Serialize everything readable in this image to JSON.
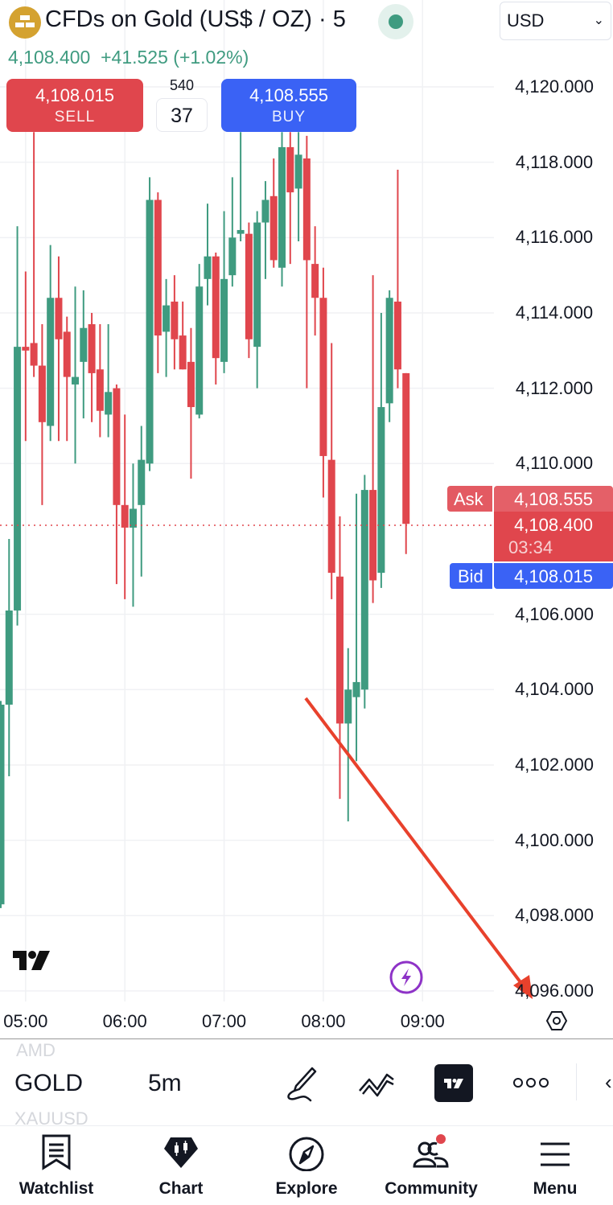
{
  "header": {
    "title": "CFDs on Gold (US$ / OZ) · 5",
    "market_status": "open",
    "last_price": "4,108.400",
    "change": "+41.525 (+1.02%)",
    "currency": "USD"
  },
  "trade": {
    "sell_price": "4,108.015",
    "sell_label": "SELL",
    "buy_price": "4,108.555",
    "buy_label": "BUY",
    "spread_top": "540",
    "spread": "37"
  },
  "price_axis": {
    "ticks": [
      "4,120.000",
      "4,118.000",
      "4,116.000",
      "4,114.000",
      "4,112.000",
      "4,110.000",
      "4,106.000",
      "4,104.000",
      "4,102.000",
      "4,100.000",
      "4,098.000",
      "4,096.000"
    ],
    "ask_label": "Ask",
    "ask_price": "4,108.555",
    "last_price": "4,108.400",
    "countdown": "03:34",
    "bid_label": "Bid",
    "bid_price": "4,108.015"
  },
  "time_axis": {
    "ticks": [
      "05:00",
      "06:00",
      "07:00",
      "08:00",
      "09:00"
    ]
  },
  "colors": {
    "up": "#3f9b80",
    "down": "#e0464d",
    "buy": "#3a62f5",
    "annotation": "#e8412c",
    "gold": "#d4a230"
  },
  "chart_data": {
    "type": "candlestick",
    "interval": "5m",
    "y_range": [
      4096,
      4120
    ],
    "x_range": [
      "04:45",
      "09:00"
    ],
    "grid": true,
    "last_price": 4108.4,
    "candles": [
      {
        "t": "04:45",
        "o": 4098.3,
        "h": 4103.7,
        "l": 4098.2,
        "c": 4103.6
      },
      {
        "t": "04:50",
        "o": 4103.6,
        "h": 4108.0,
        "l": 4101.7,
        "c": 4106.1
      },
      {
        "t": "04:55",
        "o": 4106.1,
        "h": 4116.3,
        "l": 4105.7,
        "c": 4113.1
      },
      {
        "t": "05:00",
        "o": 4113.1,
        "h": 4115.1,
        "l": 4110.6,
        "c": 4113.0
      },
      {
        "t": "05:05",
        "o": 4113.2,
        "h": 4118.8,
        "l": 4112.3,
        "c": 4112.6
      },
      {
        "t": "05:10",
        "o": 4112.6,
        "h": 4113.7,
        "l": 4108.9,
        "c": 4111.1
      },
      {
        "t": "05:15",
        "o": 4111.0,
        "h": 4115.8,
        "l": 4110.6,
        "c": 4114.4
      },
      {
        "t": "05:20",
        "o": 4114.4,
        "h": 4115.5,
        "l": 4110.6,
        "c": 4113.3
      },
      {
        "t": "05:25",
        "o": 4113.5,
        "h": 4113.9,
        "l": 4110.6,
        "c": 4112.3
      },
      {
        "t": "05:30",
        "o": 4112.1,
        "h": 4114.7,
        "l": 4110.0,
        "c": 4112.3
      },
      {
        "t": "05:35",
        "o": 4112.7,
        "h": 4114.6,
        "l": 4111.2,
        "c": 4113.6
      },
      {
        "t": "05:40",
        "o": 4113.7,
        "h": 4114.0,
        "l": 4111.1,
        "c": 4112.4
      },
      {
        "t": "05:45",
        "o": 4112.5,
        "h": 4113.7,
        "l": 4110.7,
        "c": 4111.4
      },
      {
        "t": "05:50",
        "o": 4111.3,
        "h": 4113.7,
        "l": 4110.7,
        "c": 4111.9
      },
      {
        "t": "05:55",
        "o": 4112.0,
        "h": 4112.1,
        "l": 4106.8,
        "c": 4108.9
      },
      {
        "t": "06:00",
        "o": 4108.9,
        "h": 4111.3,
        "l": 4106.4,
        "c": 4108.3
      },
      {
        "t": "06:05",
        "o": 4108.3,
        "h": 4110.0,
        "l": 4106.2,
        "c": 4108.8
      },
      {
        "t": "06:10",
        "o": 4108.9,
        "h": 4111.0,
        "l": 4107.0,
        "c": 4110.1
      },
      {
        "t": "06:15",
        "o": 4110.0,
        "h": 4117.6,
        "l": 4109.8,
        "c": 4117.0
      },
      {
        "t": "06:20",
        "o": 4117.0,
        "h": 4117.2,
        "l": 4112.4,
        "c": 4113.4
      },
      {
        "t": "06:25",
        "o": 4113.5,
        "h": 4114.9,
        "l": 4112.3,
        "c": 4114.2
      },
      {
        "t": "06:30",
        "o": 4114.3,
        "h": 4115.0,
        "l": 4112.5,
        "c": 4113.3
      },
      {
        "t": "06:35",
        "o": 4113.4,
        "h": 4114.3,
        "l": 4112.5,
        "c": 4112.5
      },
      {
        "t": "06:40",
        "o": 4112.7,
        "h": 4113.6,
        "l": 4109.6,
        "c": 4111.5
      },
      {
        "t": "06:45",
        "o": 4111.3,
        "h": 4115.3,
        "l": 4111.2,
        "c": 4114.7
      },
      {
        "t": "06:50",
        "o": 4114.9,
        "h": 4116.9,
        "l": 4114.2,
        "c": 4115.5
      },
      {
        "t": "06:55",
        "o": 4115.5,
        "h": 4115.6,
        "l": 4112.1,
        "c": 4112.8
      },
      {
        "t": "07:00",
        "o": 4112.7,
        "h": 4116.7,
        "l": 4112.4,
        "c": 4114.9
      },
      {
        "t": "07:05",
        "o": 4115.0,
        "h": 4117.6,
        "l": 4114.7,
        "c": 4116.0
      },
      {
        "t": "07:10",
        "o": 4116.1,
        "h": 4118.8,
        "l": 4115.9,
        "c": 4116.2
      },
      {
        "t": "07:15",
        "o": 4116.1,
        "h": 4116.4,
        "l": 4112.8,
        "c": 4113.3
      },
      {
        "t": "07:20",
        "o": 4113.1,
        "h": 4116.7,
        "l": 4112.0,
        "c": 4116.4
      },
      {
        "t": "07:25",
        "o": 4116.4,
        "h": 4117.5,
        "l": 4114.9,
        "c": 4117.0
      },
      {
        "t": "07:30",
        "o": 4117.1,
        "h": 4118.1,
        "l": 4115.2,
        "c": 4115.4
      },
      {
        "t": "07:35",
        "o": 4115.2,
        "h": 4118.8,
        "l": 4114.7,
        "c": 4118.4
      },
      {
        "t": "07:40",
        "o": 4118.4,
        "h": 4118.8,
        "l": 4115.3,
        "c": 4117.2
      },
      {
        "t": "07:45",
        "o": 4117.3,
        "h": 4118.8,
        "l": 4115.9,
        "c": 4118.2
      },
      {
        "t": "07:50",
        "o": 4118.1,
        "h": 4118.7,
        "l": 4112.0,
        "c": 4115.4
      },
      {
        "t": "07:55",
        "o": 4115.3,
        "h": 4116.3,
        "l": 4113.4,
        "c": 4114.4
      },
      {
        "t": "08:00",
        "o": 4114.4,
        "h": 4115.2,
        "l": 4109.1,
        "c": 4110.2
      },
      {
        "t": "08:05",
        "o": 4110.1,
        "h": 4113.2,
        "l": 4106.4,
        "c": 4107.1
      },
      {
        "t": "08:10",
        "o": 4107.0,
        "h": 4108.6,
        "l": 4101.1,
        "c": 4103.1
      },
      {
        "t": "08:15",
        "o": 4103.1,
        "h": 4105.1,
        "l": 4100.5,
        "c": 4104.0
      },
      {
        "t": "08:20",
        "o": 4103.8,
        "h": 4109.2,
        "l": 4102.1,
        "c": 4104.2
      },
      {
        "t": "08:25",
        "o": 4104.0,
        "h": 4109.7,
        "l": 4103.5,
        "c": 4109.3
      },
      {
        "t": "08:30",
        "o": 4109.3,
        "h": 4115.0,
        "l": 4106.3,
        "c": 4106.9
      },
      {
        "t": "08:35",
        "o": 4107.1,
        "h": 4114.0,
        "l": 4106.7,
        "c": 4111.5
      },
      {
        "t": "08:40",
        "o": 4111.6,
        "h": 4114.6,
        "l": 4111.1,
        "c": 4114.4
      },
      {
        "t": "08:45",
        "o": 4114.3,
        "h": 4117.8,
        "l": 4112.0,
        "c": 4112.5
      },
      {
        "t": "08:50",
        "o": 4112.4,
        "h": 4112.4,
        "l": 4107.6,
        "c": 4108.4
      }
    ]
  },
  "toolbar": {
    "symbol_prev": "AMD",
    "symbol": "GOLD",
    "symbol_next": "XAUUSD",
    "interval": "5m"
  },
  "nav": {
    "items": [
      {
        "label": "Watchlist",
        "icon": "watchlist-icon"
      },
      {
        "label": "Chart",
        "icon": "chart-icon"
      },
      {
        "label": "Explore",
        "icon": "compass-icon"
      },
      {
        "label": "Community",
        "icon": "community-icon"
      },
      {
        "label": "Menu",
        "icon": "menu-icon"
      }
    ]
  }
}
